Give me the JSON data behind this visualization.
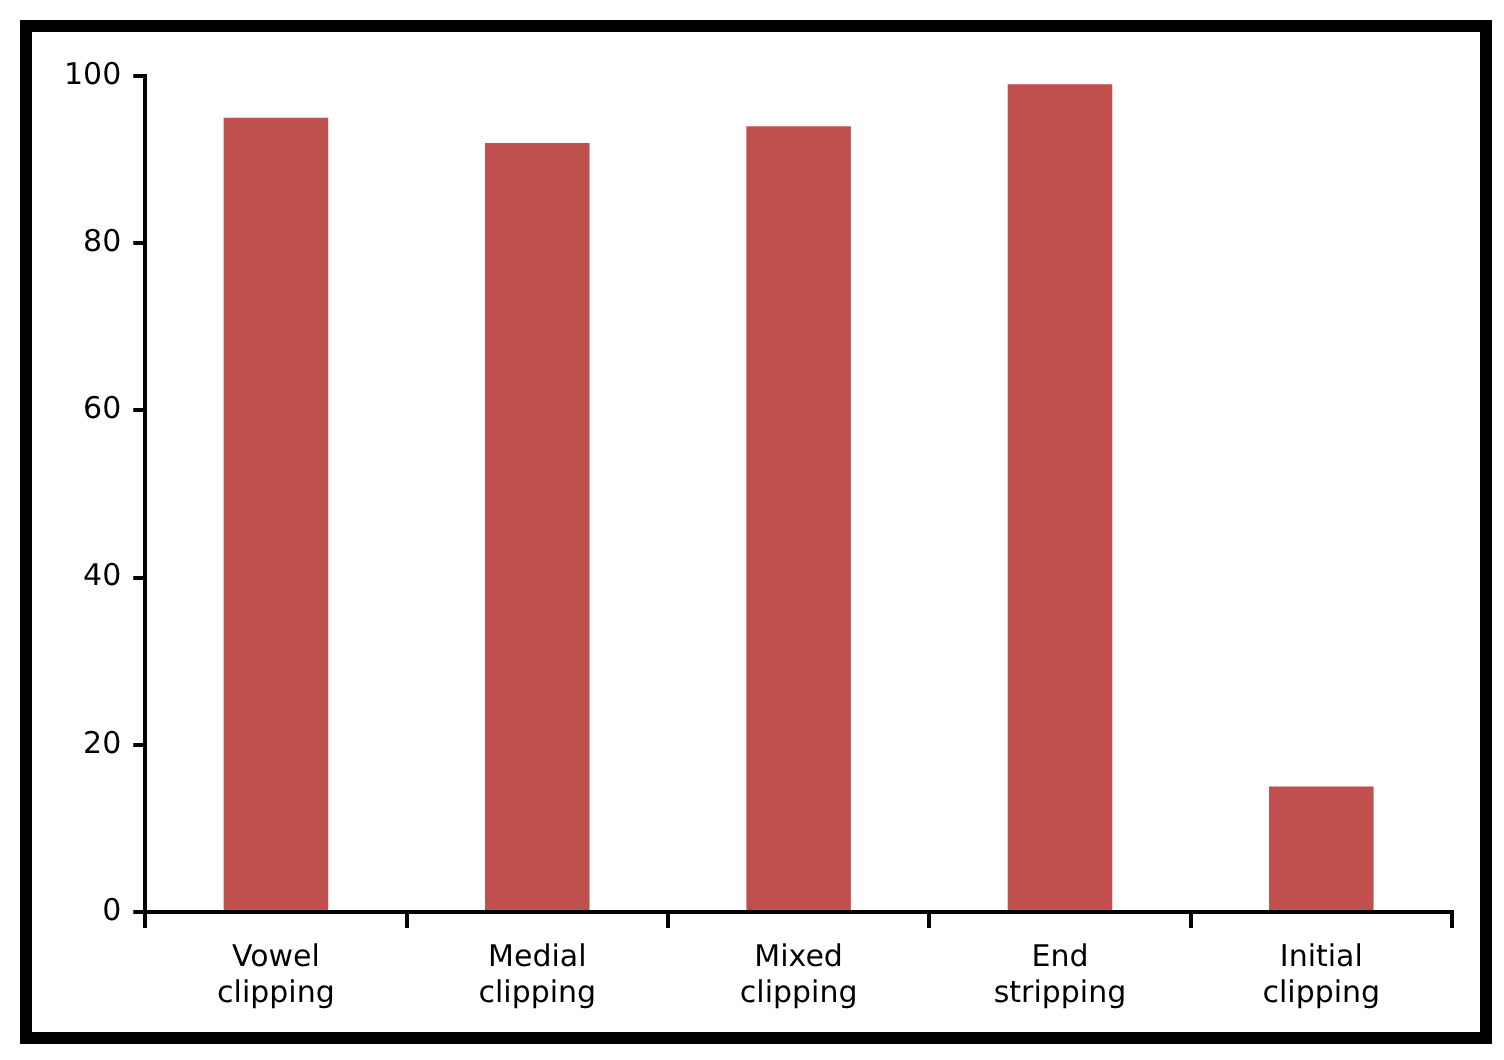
{
  "chart_data": {
    "type": "bar",
    "categories": [
      "Vowel clipping",
      "Medial clipping",
      "Mixed clipping",
      "End stripping",
      "Initial clipping"
    ],
    "values": [
      95,
      92,
      94,
      99,
      15
    ],
    "color": "#c0504d",
    "ylim": [
      0,
      100
    ],
    "yticks": [
      0,
      20,
      40,
      60,
      80,
      100
    ],
    "grid": false,
    "legend": false
  }
}
